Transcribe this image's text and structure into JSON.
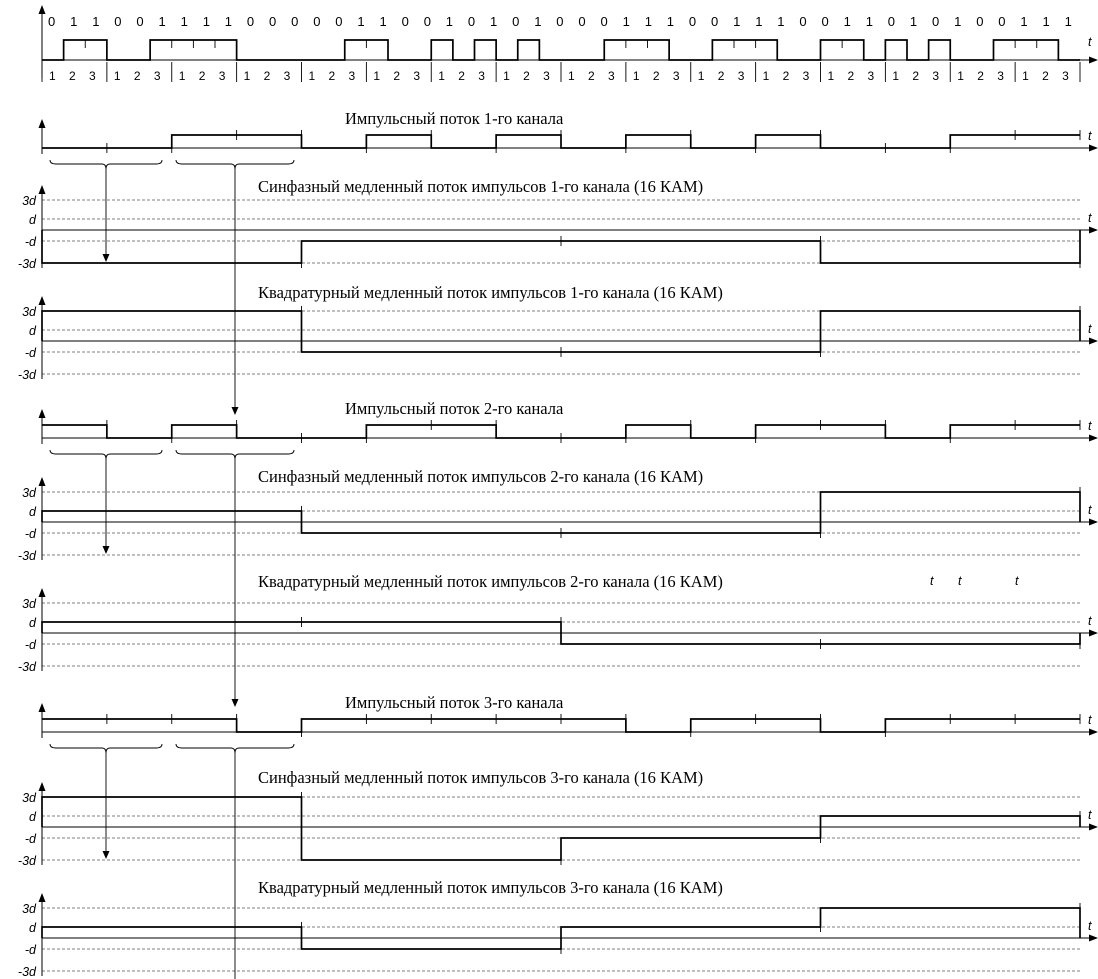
{
  "time_label": "t",
  "levels": [
    "3d",
    "d",
    "-d",
    "-3d"
  ],
  "stray_labels": [
    "t",
    "t",
    "t"
  ],
  "input_bits": [
    0,
    1,
    1,
    0,
    0,
    1,
    1,
    1,
    1,
    0,
    0,
    0,
    0,
    0,
    1,
    1,
    0,
    0,
    1,
    0,
    1,
    0,
    1,
    0,
    0,
    0,
    1,
    1,
    1,
    0,
    0,
    1,
    1,
    1,
    0,
    0,
    1,
    1,
    0,
    1,
    0,
    1,
    0,
    0,
    1,
    1,
    1
  ],
  "slot_numbers": [
    "1",
    "2",
    "3"
  ],
  "channels": [
    {
      "pulse_title": "Импульсный поток 1-го канала",
      "pulse_bits": [
        0,
        0,
        1,
        1,
        0,
        1,
        0,
        1,
        0,
        1,
        0,
        1,
        0,
        0,
        1,
        1
      ],
      "inphase_title": "Синфазный медленный поток импульсов 1-го канала (16 КАМ)",
      "inphase_levels": [
        -3,
        -1,
        -1,
        -3
      ],
      "quadrature_title": "Квадратурный медленный поток импульсов 1-го канала (16 КАМ)",
      "quadrature_levels": [
        3,
        -1,
        -1,
        3
      ]
    },
    {
      "pulse_title": "Импульсный поток 2-го канала",
      "pulse_bits": [
        1,
        0,
        1,
        0,
        0,
        1,
        1,
        0,
        0,
        1,
        0,
        1,
        1,
        0,
        1,
        1
      ],
      "inphase_title": "Синфазный медленный поток импульсов 2-го канала (16 КАМ)",
      "inphase_levels": [
        1,
        -1,
        -1,
        3
      ],
      "quadrature_title": "Квадратурный медленный поток импульсов 2-го канала (16 КАМ)",
      "quadrature_levels": [
        1,
        1,
        -1,
        -1
      ]
    },
    {
      "pulse_title": "Импульсный поток 3-го канала",
      "pulse_bits": [
        1,
        1,
        1,
        0,
        1,
        1,
        1,
        1,
        1,
        0,
        1,
        1,
        0,
        1,
        1,
        1
      ],
      "inphase_title": "Синфазный медленный поток импульсов 3-го канала (16 КАМ)",
      "inphase_levels": [
        3,
        -3,
        -1,
        1
      ],
      "quadrature_title": "Квадратурный медленный поток импульсов 3-го канала (16 КАМ)",
      "quadrature_levels": [
        1,
        -1,
        1,
        3
      ]
    }
  ]
}
